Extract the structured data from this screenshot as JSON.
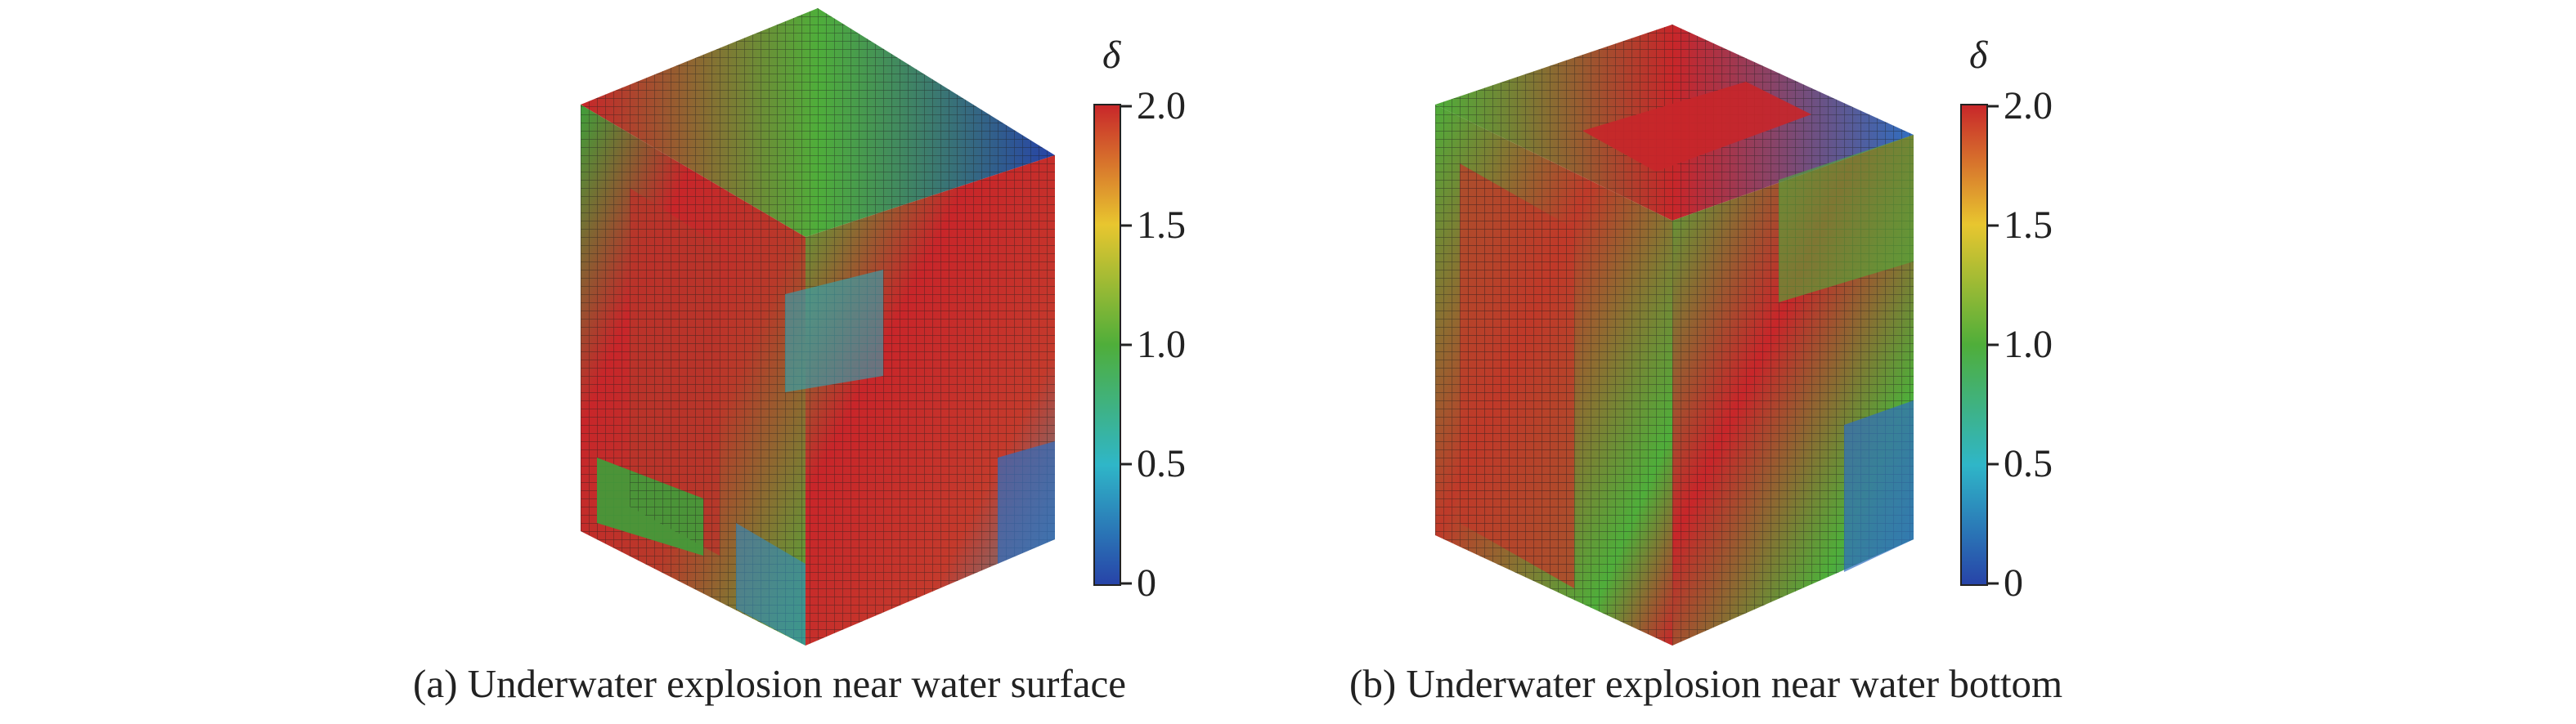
{
  "figures": [
    {
      "caption": "(a) Underwater explosion near water surface",
      "colorbar": {
        "symbol": "δ",
        "ticks": [
          "2.0",
          "1.5",
          "1.0",
          "0.5",
          "0"
        ]
      }
    },
    {
      "caption": "(b) Underwater explosion near water bottom",
      "colorbar": {
        "symbol": "δ",
        "ticks": [
          "2.0",
          "1.5",
          "1.0",
          "0.5",
          "0"
        ]
      }
    }
  ],
  "colors": {
    "high": "#c8262a",
    "mid_high": "#e8c62f",
    "mid": "#4fae3a",
    "mid_low": "#2fb6c8",
    "low": "#2743a8",
    "mesh": "#1a1a1a"
  }
}
